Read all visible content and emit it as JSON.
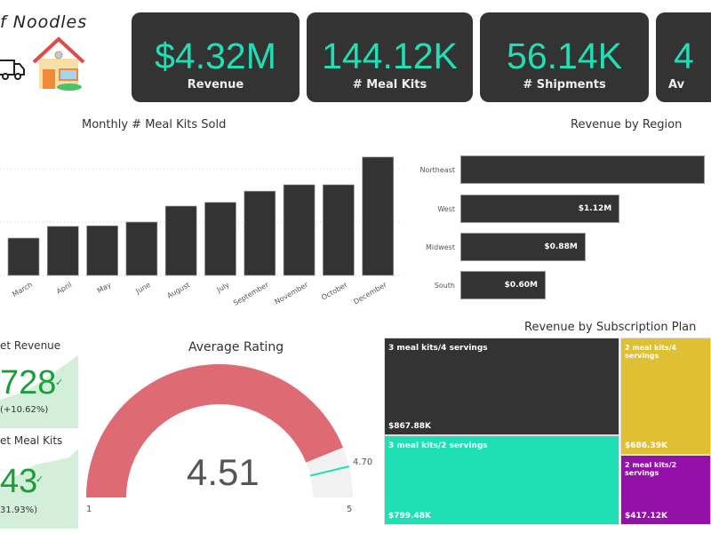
{
  "header": {
    "logo_text": "f Noodles"
  },
  "cards": [
    {
      "value": "$4.32M",
      "label": "Revenue"
    },
    {
      "value": "144.12K",
      "label": "# Meal Kits"
    },
    {
      "value": "56.14K",
      "label": "# Shipments"
    },
    {
      "value": "4",
      "label": "Av"
    }
  ],
  "kpis": [
    {
      "title": "et Revenue",
      "value": "728",
      "change": "(+10.62%)"
    },
    {
      "title": "et Meal Kits",
      "value": "43",
      "change": "31.93%)"
    }
  ],
  "colors": {
    "dark": "#333333",
    "accent": "#1fe0b4",
    "gauge": "#de6a73",
    "yellow": "#e0c033",
    "purple": "#9410a8",
    "kpi_green": "#1a9e3a"
  },
  "chart_data": [
    {
      "type": "bar",
      "title": "Monthly # Meal Kits Sold",
      "categories": [
        "March",
        "April",
        "May",
        "June",
        "August",
        "July",
        "September",
        "November",
        "October",
        "December"
      ],
      "values": [
        7000,
        9200,
        9300,
        10000,
        13000,
        13700,
        15800,
        17000,
        17000,
        22200
      ],
      "grid": true
    },
    {
      "type": "bar",
      "orientation": "horizontal",
      "title": "Revenue by Region",
      "categories": [
        "Northeast",
        "West",
        "Midwest",
        "South"
      ],
      "values": [
        1.72,
        1.12,
        0.88,
        0.6
      ],
      "labels": [
        "",
        "$1.12M",
        "$0.88M",
        "$0.60M"
      ],
      "unit": "M$"
    },
    {
      "type": "gauge",
      "title": "Average Rating",
      "value": 4.51,
      "value_label": "4.51",
      "min": 1,
      "max": 5,
      "min_label": "1",
      "max_label": "5",
      "target": 4.7,
      "target_label": "4.70"
    },
    {
      "type": "treemap",
      "title": "Revenue by Subscription Plan",
      "items": [
        {
          "name": "3 meal kits/4 servings",
          "value": "$867.88K",
          "color": "#333333"
        },
        {
          "name": "3 meal kits/2 servings",
          "value": "$799.48K",
          "color": "#1fe0b4"
        },
        {
          "name": "2 meal kits/4 servings",
          "value": "$686.39K",
          "color": "#e0c033"
        },
        {
          "name": "2 meal kits/2 servings",
          "value": "$417.12K",
          "color": "#9410a8"
        }
      ]
    }
  ]
}
